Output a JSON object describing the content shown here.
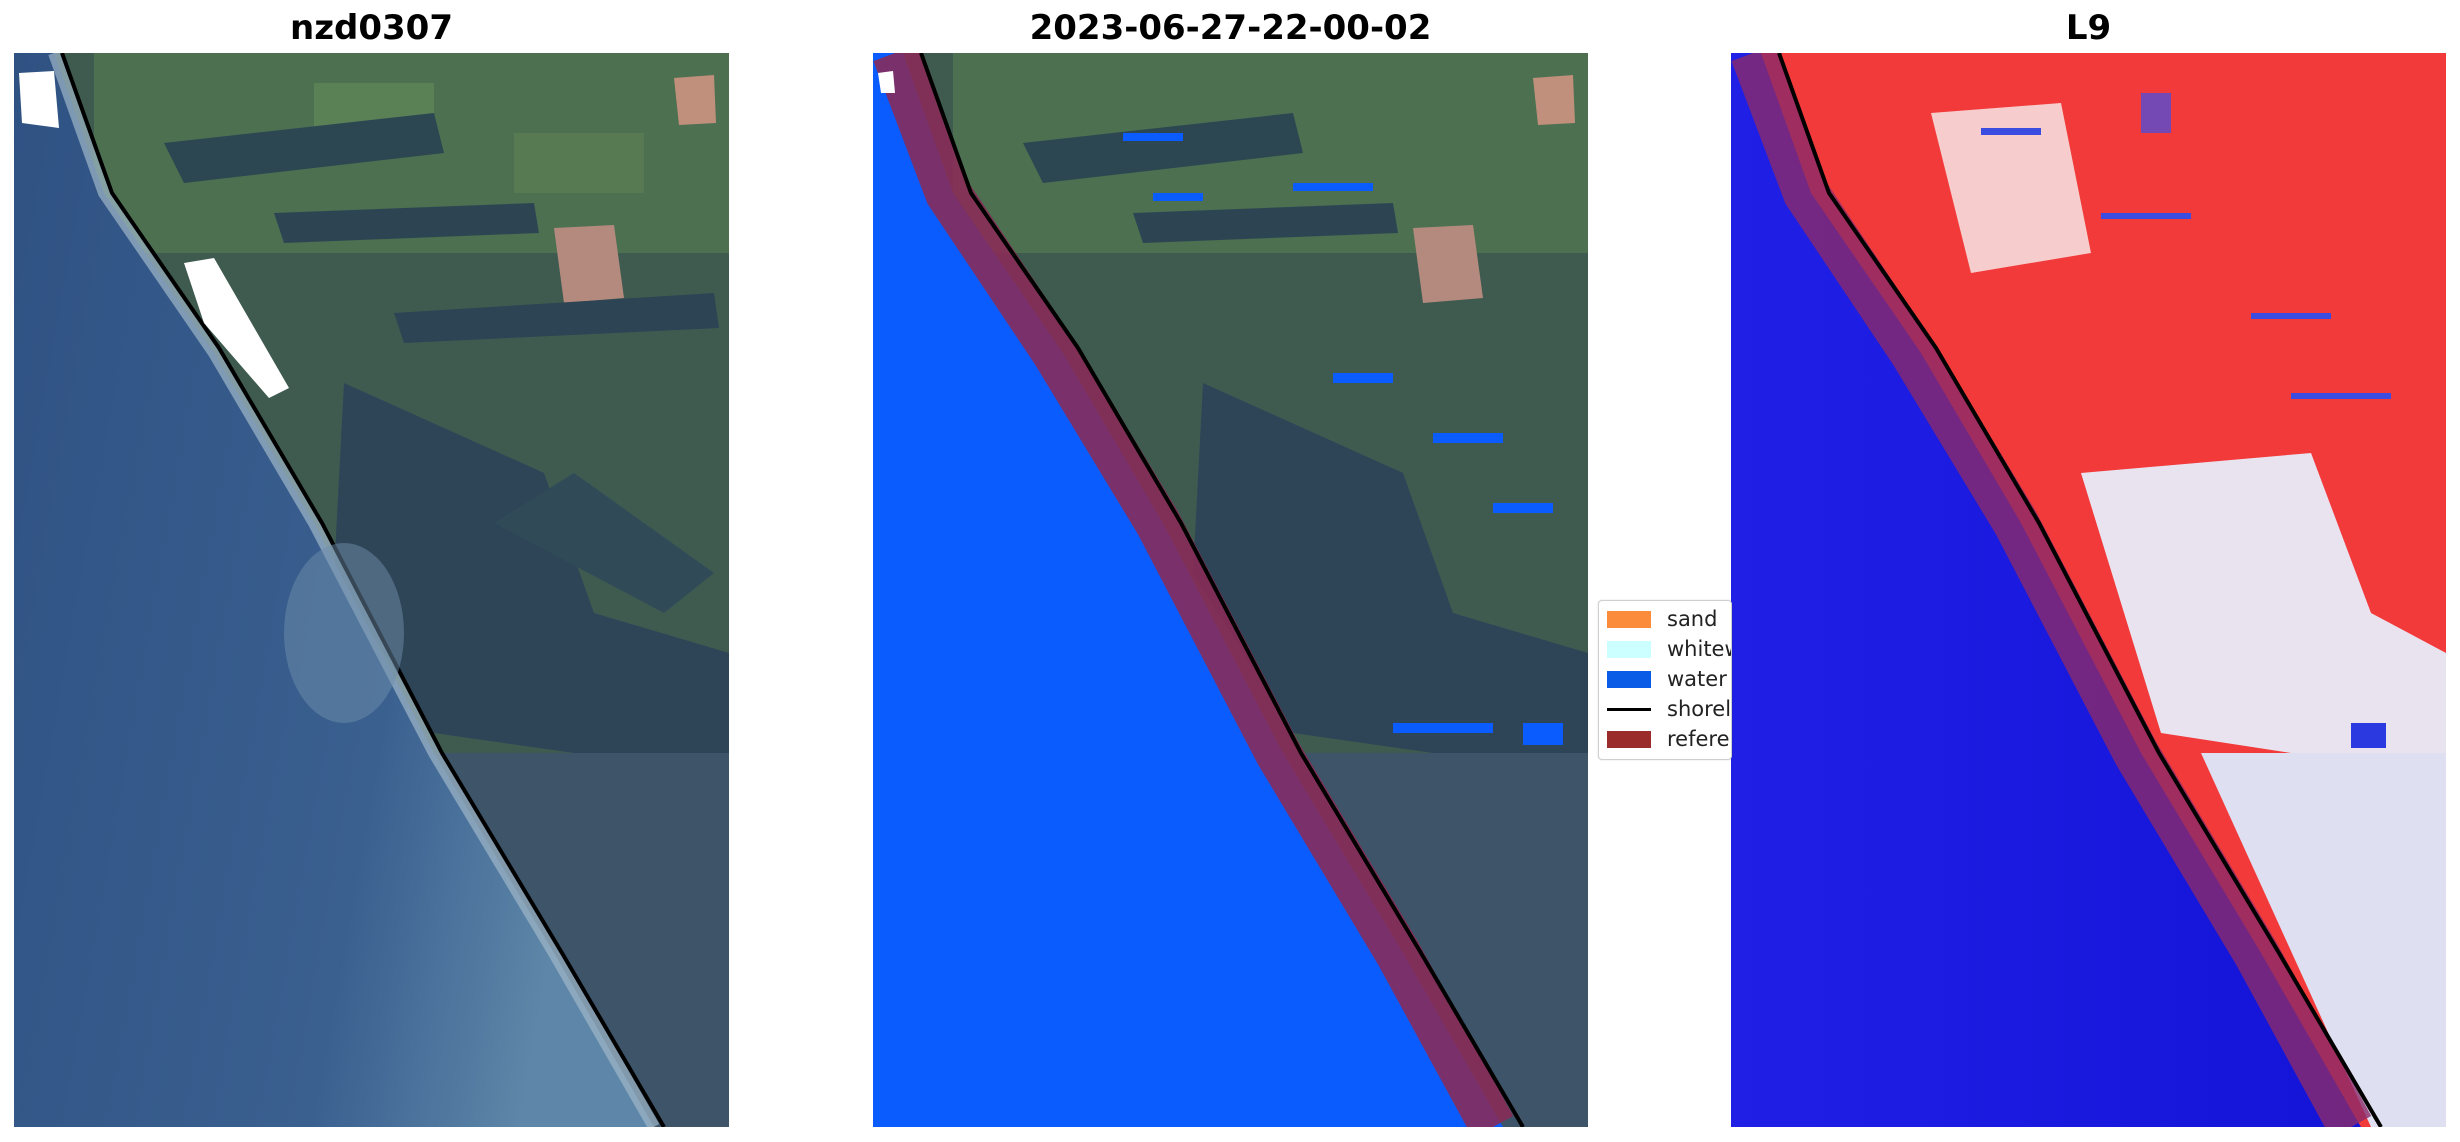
{
  "panels": [
    {
      "title": "nzd0307"
    },
    {
      "title": "2023-06-27-22-00-02"
    },
    {
      "title": "L9"
    }
  ],
  "legend": {
    "items": [
      {
        "label": "sand",
        "color": "#fb8c3c"
      },
      {
        "label": "whitew",
        "color": "#ccffff"
      },
      {
        "label": "water",
        "color": "#0a5ce6"
      },
      {
        "label": "shorel",
        "color": "#000000"
      },
      {
        "label": "referer",
        "color": "#9b2c2c"
      }
    ]
  },
  "colors": {
    "ocean": "#3b5a86",
    "land": "#3f5e4f",
    "forest": "#2f4650",
    "water_mask": "#0a5cff",
    "reference_band": "#8b2a55",
    "index_water": "#1010e0",
    "index_land": "#f23232"
  }
}
